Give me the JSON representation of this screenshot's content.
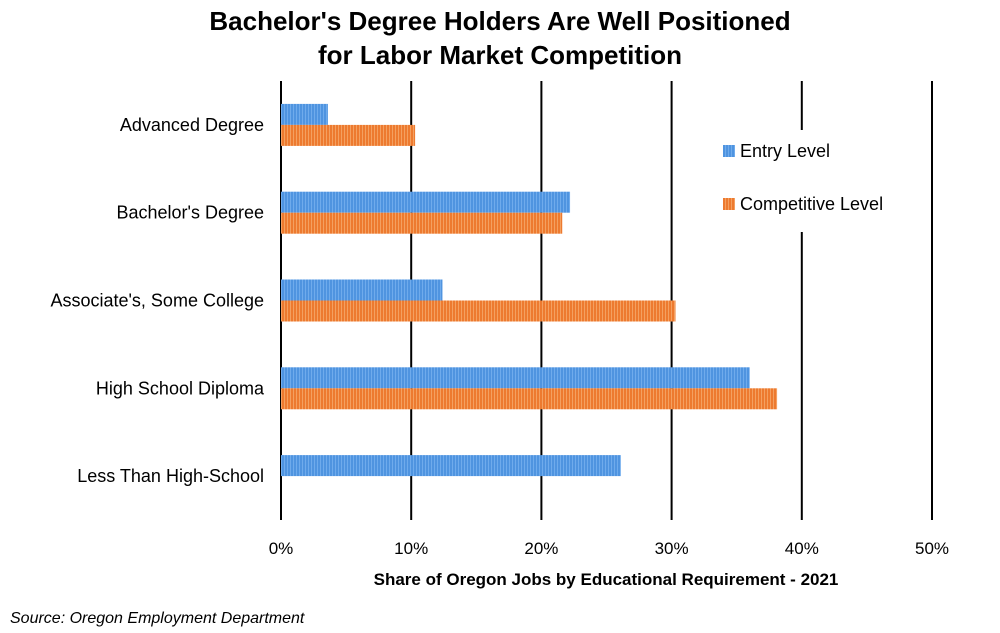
{
  "chart_data": {
    "type": "bar",
    "orientation": "horizontal",
    "title_line1": "Bachelor's Degree Holders Are Well Positioned",
    "title_line2": "for Labor Market Competition",
    "xlabel": "Share of Oregon Jobs by Educational Requirement - 2021",
    "categories": [
      "Advanced Degree",
      "Bachelor's Degree",
      "Associate's, Some College",
      "High School Diploma",
      "Less Than High-School"
    ],
    "series": [
      {
        "name": "Entry Level",
        "values": [
          3.6,
          22.2,
          12.4,
          36.0,
          26.1
        ],
        "color": "#4f94e0"
      },
      {
        "name": "Competitive Level",
        "values": [
          10.3,
          21.6,
          30.3,
          38.1,
          0
        ],
        "color": "#ed7a2f"
      }
    ],
    "xlim": [
      0,
      50
    ],
    "ticks": [
      "0%",
      "10%",
      "20%",
      "30%",
      "40%",
      "50%"
    ],
    "tick_values": [
      0,
      10,
      20,
      30,
      40,
      50
    ],
    "grid": true,
    "legend_position": "top-right"
  },
  "source": "Source: Oregon Employment Department"
}
